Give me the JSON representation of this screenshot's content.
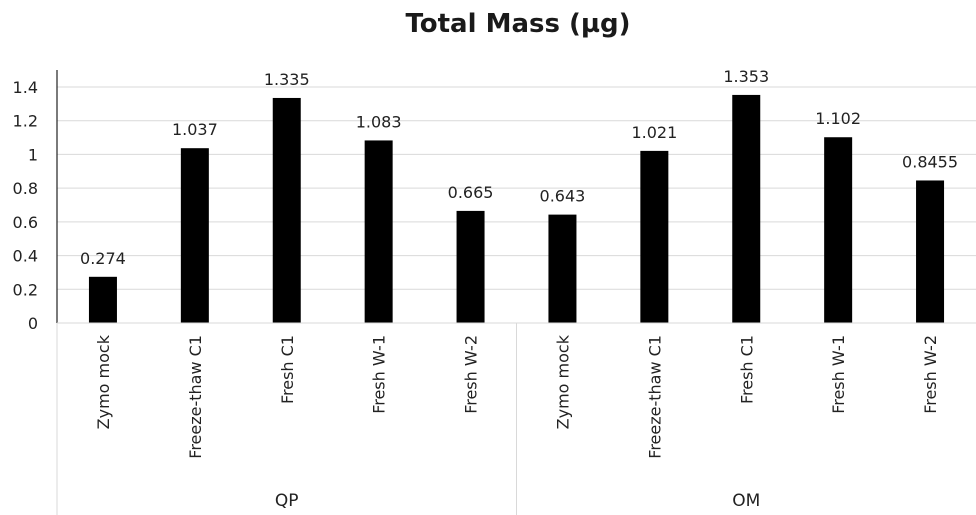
{
  "chart_data": {
    "type": "bar",
    "title": "Total Mass (µg)",
    "xlabel": "",
    "ylabel": "",
    "ylim": [
      0,
      1.4
    ],
    "y_ticks": [
      "0",
      "0.2",
      "0.4",
      "0.6",
      "0.8",
      "1",
      "1.2",
      "1.4"
    ],
    "grid": true,
    "legend": "none",
    "bar_color": "#000000",
    "groups": [
      {
        "name": "QP",
        "categories": [
          "Zymo mock",
          "Freeze-thaw C1",
          "Fresh C1",
          "Fresh W-1",
          "Fresh W-2"
        ],
        "values": [
          0.274,
          1.037,
          1.335,
          1.083,
          0.665
        ],
        "labels": [
          "0.274",
          "1.037",
          "1.335",
          "1.083",
          "0.665"
        ]
      },
      {
        "name": "OM",
        "categories": [
          "Zymo mock",
          "Freeze-thaw C1",
          "Fresh C1",
          "Fresh W-1",
          "Fresh W-2"
        ],
        "values": [
          0.643,
          1.021,
          1.353,
          1.102,
          0.8455
        ],
        "labels": [
          "0.643",
          "1.021",
          "1.353",
          "1.102",
          "0.8455"
        ]
      }
    ]
  }
}
